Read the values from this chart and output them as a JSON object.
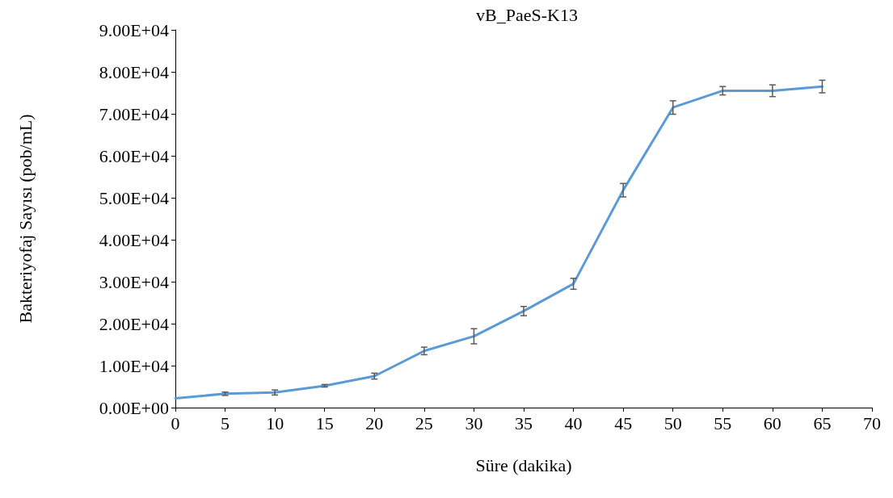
{
  "chart_data": {
    "type": "line",
    "title": "vB_PaeS-K13",
    "xlabel": "Süre (dakika)",
    "ylabel": "Bakteriyofaj Sayısı (pob/mL)",
    "x": [
      0,
      5,
      10,
      15,
      20,
      25,
      30,
      35,
      40,
      45,
      50,
      55,
      60,
      65
    ],
    "series": [
      {
        "color": "#5b9bd5",
        "values": [
          2200,
          3300,
          3600,
          5200,
          7500,
          13500,
          17000,
          23000,
          29500,
          51800,
          71500,
          75500,
          75500,
          76500
        ],
        "errors": [
          null,
          400,
          600,
          300,
          700,
          900,
          1800,
          1100,
          1300,
          1600,
          1600,
          1000,
          1400,
          1500
        ]
      }
    ],
    "xlim": [
      0,
      70
    ],
    "xticks": [
      0,
      5,
      10,
      15,
      20,
      25,
      30,
      35,
      40,
      45,
      50,
      55,
      60,
      65,
      70
    ],
    "ylim": [
      0,
      90000
    ],
    "yticks": [
      {
        "value": 0,
        "label": "0.00E+00"
      },
      {
        "value": 10000,
        "label": "1.00E+04"
      },
      {
        "value": 20000,
        "label": "2.00E+04"
      },
      {
        "value": 30000,
        "label": "3.00E+04"
      },
      {
        "value": 40000,
        "label": "4.00E+04"
      },
      {
        "value": 50000,
        "label": "5.00E+04"
      },
      {
        "value": 60000,
        "label": "6.00E+04"
      },
      {
        "value": 70000,
        "label": "7.00E+04"
      },
      {
        "value": 80000,
        "label": "8.00E+04"
      },
      {
        "value": 90000,
        "label": "9.00E+04"
      }
    ],
    "grid": false,
    "marker": "none",
    "line_style": "solid"
  }
}
